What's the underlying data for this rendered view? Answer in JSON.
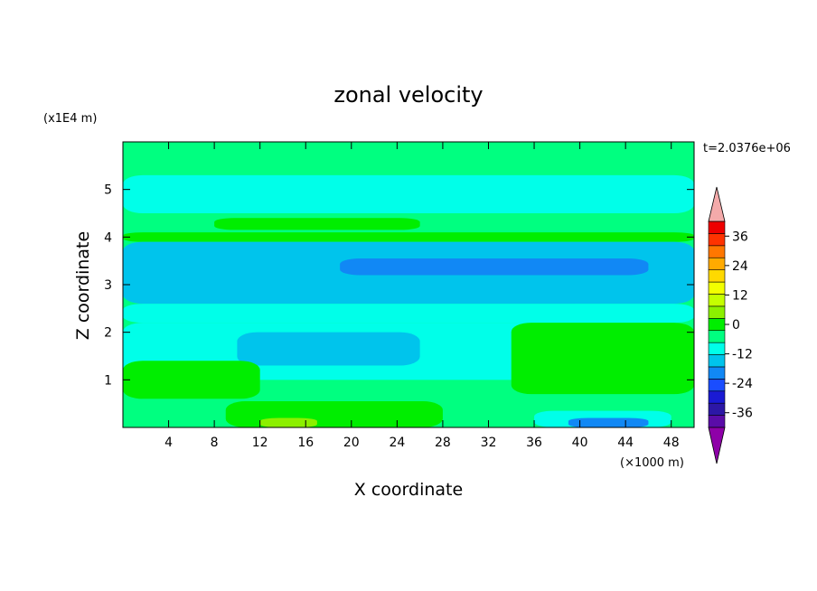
{
  "chart_data": {
    "type": "heatmap",
    "title": "zonal velocity",
    "xlabel": "X coordinate",
    "ylabel": "Z coordinate",
    "x_unit": "(×1000 m)",
    "y_unit": "(x1E4 m)",
    "time_label": "t=2.0376e+06",
    "xlim": [
      0,
      50
    ],
    "ylim": [
      0,
      6
    ],
    "x_ticks": [
      4,
      8,
      12,
      16,
      20,
      24,
      28,
      32,
      36,
      40,
      44,
      48
    ],
    "y_ticks": [
      1,
      2,
      3,
      4,
      5
    ],
    "colorbar": {
      "min": -42,
      "max": 42,
      "step": 6,
      "tick_labels": [
        "36",
        "24",
        "12",
        "0",
        "-12",
        "-24",
        "-36"
      ],
      "tick_values": [
        36,
        24,
        12,
        0,
        -12,
        -24,
        -36
      ],
      "colors": [
        "#5a0ca8",
        "#2c17a6",
        "#1a1ad4",
        "#1a4dff",
        "#1188f5",
        "#00c4ec",
        "#00ffe9",
        "#00ff80",
        "#00ee00",
        "#8cf000",
        "#c5ff00",
        "#f2ff00",
        "#ffd900",
        "#ffaa00",
        "#ff7700",
        "#ff3300",
        "#ee0000"
      ],
      "under_color": "#8e00a8",
      "over_color": "#f4aaaa"
    },
    "field": {
      "background_value": 0,
      "regions": [
        {
          "x": [
            0,
            50
          ],
          "z": [
            5.3,
            6.0
          ],
          "u": 2
        },
        {
          "x": [
            0,
            50
          ],
          "z": [
            4.5,
            5.3
          ],
          "u": -3
        },
        {
          "x": [
            0,
            50
          ],
          "z": [
            3.95,
            4.5
          ],
          "u": 4
        },
        {
          "x": [
            0,
            50
          ],
          "z": [
            3.9,
            4.1
          ],
          "u": 9
        },
        {
          "x": [
            8,
            26
          ],
          "z": [
            4.15,
            4.4
          ],
          "u": 11
        },
        {
          "x": [
            0,
            50
          ],
          "z": [
            2.6,
            3.9
          ],
          "u": -8
        },
        {
          "x": [
            19,
            46
          ],
          "z": [
            3.2,
            3.55
          ],
          "u": -15
        },
        {
          "x": [
            0,
            50
          ],
          "z": [
            2.2,
            2.6
          ],
          "u": -2
        },
        {
          "x": [
            0,
            50
          ],
          "z": [
            1.0,
            2.2
          ],
          "u": -4
        },
        {
          "x": [
            10,
            26
          ],
          "z": [
            1.3,
            2.0
          ],
          "u": -10
        },
        {
          "x": [
            34,
            50
          ],
          "z": [
            0.7,
            2.2
          ],
          "u": 7
        },
        {
          "x": [
            0,
            12
          ],
          "z": [
            0.6,
            1.4
          ],
          "u": 6
        },
        {
          "x": [
            0,
            50
          ],
          "z": [
            0.0,
            0.6
          ],
          "u": 2
        },
        {
          "x": [
            9,
            28
          ],
          "z": [
            0.0,
            0.55
          ],
          "u": 7
        },
        {
          "x": [
            12,
            17
          ],
          "z": [
            0.0,
            0.2
          ],
          "u": 13
        },
        {
          "x": [
            36,
            48
          ],
          "z": [
            0.0,
            0.35
          ],
          "u": -6
        },
        {
          "x": [
            39,
            46
          ],
          "z": [
            0.0,
            0.2
          ],
          "u": -13
        }
      ]
    }
  }
}
